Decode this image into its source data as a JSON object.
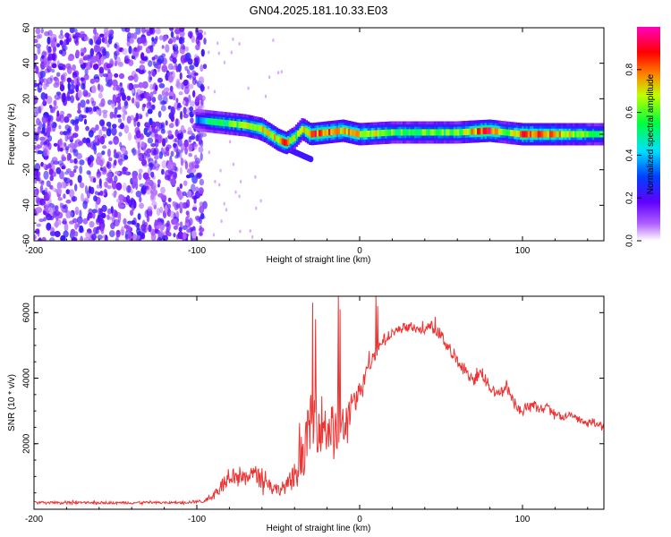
{
  "figure": {
    "title": "GN04.2025.181.10.33.E03"
  },
  "chart_data": [
    {
      "type": "heatmap",
      "xlabel": "Height of straight line (km)",
      "ylabel": "Frequency (Hz)",
      "xlim": [
        -200,
        150
      ],
      "ylim": [
        -60,
        60
      ],
      "xticks": [
        -200,
        -100,
        0,
        100
      ],
      "yticks": [
        -60,
        -40,
        -20,
        0,
        20,
        40,
        60
      ],
      "colorbar": {
        "label": "Normalized spectral amplitude",
        "range": [
          0,
          1
        ],
        "ticks": [
          0.0,
          0.2,
          0.4,
          0.6,
          0.8
        ],
        "tick_labels": [
          "0.0",
          "0.2",
          "0.4",
          "0.6",
          "0.8"
        ],
        "colors": [
          "#ffffff",
          "#8000ff",
          "#0000ff",
          "#00ffff",
          "#00ff00",
          "#ffff00",
          "#ff0000",
          "#ff00c0"
        ]
      },
      "noise_region_x": [
        -200,
        -95
      ],
      "ridge": {
        "x": [
          -100,
          -90,
          -80,
          -70,
          -60,
          -55,
          -50,
          -45,
          -40,
          -35,
          -30,
          -20,
          -10,
          0,
          20,
          40,
          60,
          80,
          90,
          100,
          120,
          150
        ],
        "freq": [
          8,
          7,
          6,
          5,
          3,
          0,
          -3,
          -5,
          -2,
          3,
          0,
          1,
          2,
          0,
          1,
          1,
          1,
          2,
          1,
          0,
          0,
          0
        ],
        "amplitude": [
          0.3,
          0.5,
          0.55,
          0.6,
          0.65,
          0.7,
          0.7,
          0.75,
          0.6,
          0.6,
          0.8,
          0.8,
          0.7,
          0.7,
          0.55,
          0.55,
          0.55,
          0.85,
          0.5,
          0.8,
          0.7,
          0.5
        ]
      },
      "lower_branch": {
        "x": [
          -70,
          -60,
          -50,
          -40,
          -30
        ],
        "freq": [
          2,
          -2,
          -6,
          -10,
          -14
        ]
      }
    },
    {
      "type": "line",
      "xlabel": "Height of straight line (km)",
      "ylabel": "SNR (10 * v/v)",
      "xlim": [
        -200,
        150
      ],
      "ylim": [
        0,
        6500
      ],
      "xticks": [
        -200,
        -100,
        0,
        100
      ],
      "yticks": [
        2000,
        4000,
        6000
      ],
      "series": [
        {
          "color": "#ee3333",
          "envelope_x": [
            -200,
            -110,
            -95,
            -90,
            -85,
            -80,
            -75,
            -70,
            -65,
            -60,
            -55,
            -50,
            -45,
            -40,
            -35,
            -30,
            -25,
            -20,
            -15,
            -10,
            -5,
            0,
            5,
            10,
            15,
            20,
            25,
            30,
            35,
            40,
            45,
            50,
            55,
            60,
            65,
            70,
            75,
            80,
            85,
            90,
            95,
            100,
            105,
            110,
            115,
            120,
            125,
            130,
            135,
            140,
            145,
            150
          ],
          "envelope_y": [
            200,
            200,
            250,
            450,
            700,
            1100,
            1000,
            900,
            1150,
            900,
            750,
            600,
            700,
            1000,
            1700,
            2600,
            2700,
            2500,
            2300,
            2400,
            3100,
            3600,
            4300,
            4800,
            5200,
            5400,
            5500,
            5550,
            5500,
            5450,
            5600,
            5300,
            4900,
            4500,
            4200,
            3900,
            4200,
            3700,
            3500,
            3800,
            3200,
            3000,
            3200,
            3050,
            3100,
            2900,
            2800,
            2900,
            2700,
            2650,
            2600,
            2550
          ],
          "spread_y": [
            80,
            80,
            100,
            250,
            400,
            600,
            500,
            450,
            500,
            450,
            400,
            350,
            450,
            900,
            1500,
            1800,
            1900,
            1800,
            1700,
            1600,
            900,
            600,
            500,
            400,
            300,
            250,
            250,
            250,
            250,
            300,
            350,
            400,
            400,
            350,
            300,
            300,
            450,
            300,
            250,
            350,
            300,
            250,
            300,
            250,
            300,
            250,
            200,
            250,
            200,
            200,
            200,
            200
          ],
          "spikes_x": [
            -29,
            -27,
            -13,
            -12,
            10,
            11
          ],
          "spikes_y": [
            6300,
            5800,
            6500,
            6100,
            6500,
            6200
          ]
        }
      ]
    }
  ]
}
